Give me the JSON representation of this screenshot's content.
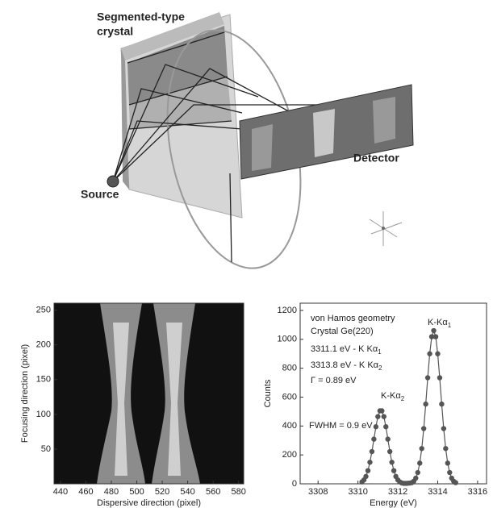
{
  "diagram": {
    "crystal_label": [
      "Segmented-type",
      "crystal"
    ],
    "detector_label": "Detector",
    "source_label": "Source"
  },
  "chart_data": [
    {
      "type": "image",
      "xlabel": "Dispersive direction (pixel)",
      "ylabel": "Focusing direction (pixel)",
      "xlim": [
        435,
        584
      ],
      "xticks": [
        440,
        460,
        480,
        500,
        520,
        540,
        560,
        580
      ],
      "ylim": [
        0,
        260
      ],
      "yticks": [
        50,
        100,
        150,
        200,
        250
      ]
    },
    {
      "type": "line",
      "xlabel": "Energy (eV)",
      "ylabel": "Counts",
      "xlim": [
        3307.1,
        3316.45
      ],
      "xticks": [
        3308,
        3310,
        3312,
        3314,
        3316
      ],
      "ylim": [
        0,
        1250
      ],
      "yticks": [
        0,
        200,
        400,
        600,
        800,
        1000,
        1200
      ],
      "annotations": [
        {
          "text": "von Hamos geometry"
        },
        {
          "text": "Crystal Ge(220)"
        },
        {
          "text": "3311.1 eV - K Kα",
          "sub": "1"
        },
        {
          "text": "3313.8 eV - K Kα",
          "sub": "2"
        },
        {
          "text": "Γ = 0.89 eV"
        },
        {
          "text": "FWHM = 0.9 eV"
        },
        {
          "text": "K-Kα",
          "sub": "2"
        },
        {
          "text": "K-Kα",
          "sub": "1"
        }
      ],
      "series": [
        {
          "color": "#555555",
          "x": [
            3310.2,
            3310.3,
            3310.4,
            3310.5,
            3310.6,
            3310.7,
            3310.8,
            3310.9,
            3311.0,
            3311.1,
            3311.2,
            3311.3,
            3311.4,
            3311.5,
            3311.6,
            3311.7,
            3311.8,
            3311.9,
            3312.0,
            3312.1,
            3312.2,
            3312.3,
            3312.4,
            3312.5,
            3312.6,
            3312.7,
            3312.8,
            3312.9,
            3313.0,
            3313.1,
            3313.2,
            3313.3,
            3313.4,
            3313.5,
            3313.6,
            3313.7,
            3313.8,
            3313.9,
            3314.0,
            3314.1,
            3314.2,
            3314.3,
            3314.4,
            3314.5,
            3314.6,
            3314.7,
            3314.8,
            3314.9
          ],
          "values": [
            13,
            27,
            51,
            91,
            149,
            223,
            309,
            395,
            465,
            505,
            505,
            465,
            395,
            309,
            223,
            149,
            91,
            51,
            27,
            13,
            6,
            3,
            3,
            4,
            5,
            8,
            18,
            39,
            78,
            143,
            244,
            382,
            552,
            734,
            900,
            1018,
            1060,
            1018,
            900,
            734,
            552,
            382,
            244,
            143,
            78,
            39,
            18,
            8
          ]
        }
      ]
    }
  ]
}
